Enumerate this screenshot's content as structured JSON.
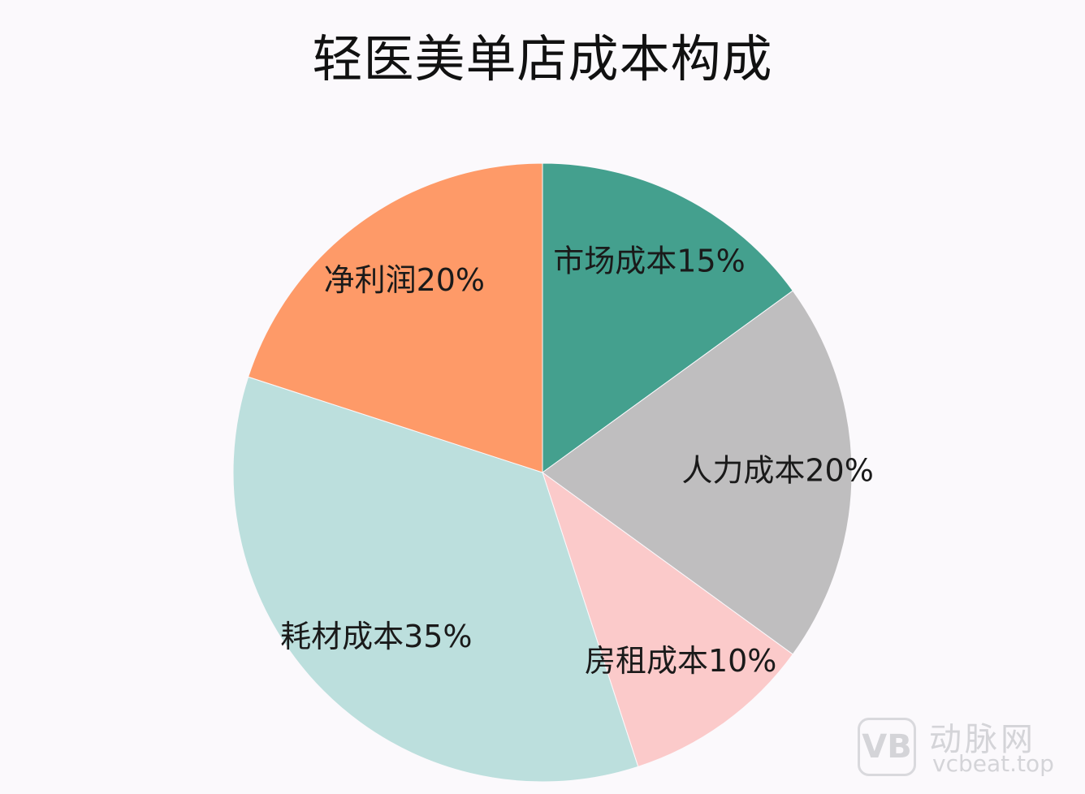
{
  "chart_data": {
    "type": "pie",
    "title": "轻医美单店成本构成",
    "start_angle_deg": 0,
    "direction": "clockwise",
    "slices": [
      {
        "label": "市场成本15%",
        "value": 15,
        "color": "#44a08e"
      },
      {
        "label": "人力成本20%",
        "value": 20,
        "color": "#bfbebf"
      },
      {
        "label": "房租成本10%",
        "value": 10,
        "color": "#fbcaca"
      },
      {
        "label": "耗材成本35%",
        "value": 35,
        "color": "#bcdfdd"
      },
      {
        "label": "净利润20%",
        "value": 20,
        "color": "#fe9a68"
      }
    ]
  },
  "watermark": {
    "logo_text": "VB",
    "name": "动脉网",
    "url": "vcbeat.top"
  }
}
